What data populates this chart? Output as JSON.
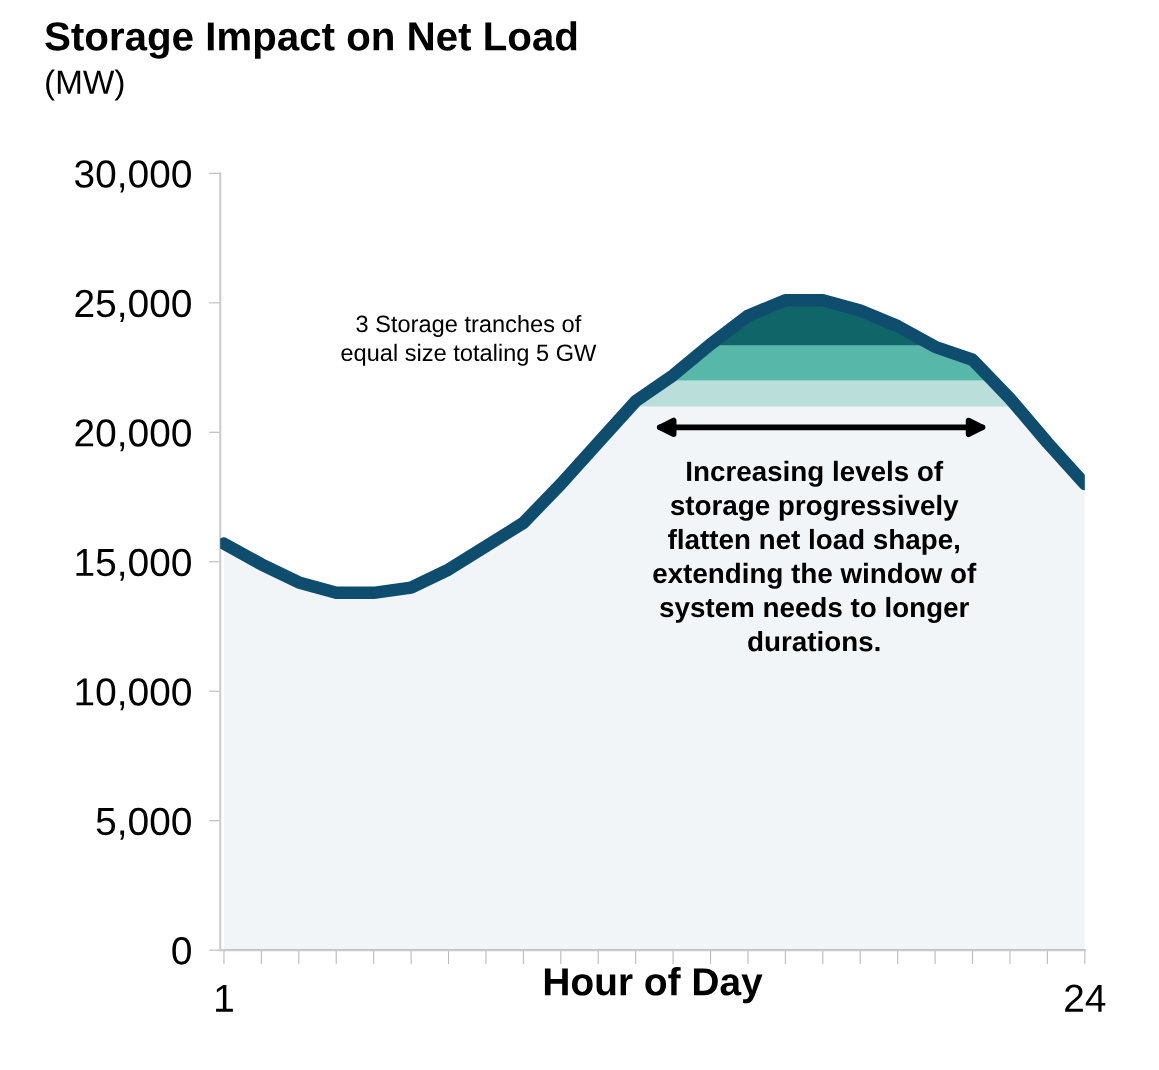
{
  "chart_data": {
    "type": "area",
    "title": "Storage Impact on Net Load",
    "subtitle": "(MW)",
    "xlabel": "Hour of Day",
    "x": [
      1,
      2,
      3,
      4,
      5,
      6,
      7,
      8,
      9,
      10,
      11,
      12,
      13,
      14,
      15,
      16,
      17,
      18,
      19,
      20,
      21,
      22,
      23,
      24
    ],
    "series": [
      {
        "color": "#0e4d6e",
        "values": [
          15700,
          14900,
          14200,
          13800,
          13800,
          14000,
          14700,
          15600,
          16500,
          18000,
          19600,
          21200,
          22200,
          23400,
          24500,
          25100,
          25100,
          24700,
          24100,
          23300,
          22800,
          21300,
          19600,
          18000
        ]
      }
    ],
    "bands": [
      {
        "axis": "y",
        "from": 21000,
        "to": 22000,
        "color": "#c4e8e2"
      },
      {
        "axis": "y",
        "from": 22000,
        "to": 23350,
        "color": "#5cbfae"
      },
      {
        "axis": "y",
        "from": 23350,
        "to": 25100,
        "color": "#0f6767"
      }
    ],
    "annotations": [
      "3 Storage tranches of\nequal size totaling 5 GW",
      "Increasing levels of\nstorage progressively\nflatten net load shape,\nextending the window of\nsystem needs to longer\ndurations."
    ],
    "xlim": [
      0.9,
      24
    ],
    "ylim": [
      0,
      30000
    ],
    "xticks": [
      {
        "value": 1,
        "label": "1"
      },
      {
        "value": 2,
        "label": null
      },
      {
        "value": 3,
        "label": null
      },
      {
        "value": 4,
        "label": null
      },
      {
        "value": 5,
        "label": null
      },
      {
        "value": 6,
        "label": null
      },
      {
        "value": 7,
        "label": null
      },
      {
        "value": 8,
        "label": null
      },
      {
        "value": 9,
        "label": null
      },
      {
        "value": 10,
        "label": null
      },
      {
        "value": 11,
        "label": null
      },
      {
        "value": 12,
        "label": null
      },
      {
        "value": 13,
        "label": null
      },
      {
        "value": 14,
        "label": null
      },
      {
        "value": 15,
        "label": null
      },
      {
        "value": 16,
        "label": null
      },
      {
        "value": 17,
        "label": null
      },
      {
        "value": 18,
        "label": null
      },
      {
        "value": 19,
        "label": null
      },
      {
        "value": 20,
        "label": null
      },
      {
        "value": 21,
        "label": null
      },
      {
        "value": 22,
        "label": null
      },
      {
        "value": 23,
        "label": null
      },
      {
        "value": 24,
        "label": "24"
      }
    ],
    "yticks": [
      {
        "value": 0,
        "label": "0"
      },
      {
        "value": 5000,
        "label": "5,000"
      },
      {
        "value": 10000,
        "label": "10,000"
      },
      {
        "value": 15000,
        "label": "15,000"
      },
      {
        "value": 20000,
        "label": "20,000"
      },
      {
        "value": 25000,
        "label": "25,000"
      },
      {
        "value": 30000,
        "label": "30,000"
      }
    ],
    "grid": false,
    "legend": false
  }
}
